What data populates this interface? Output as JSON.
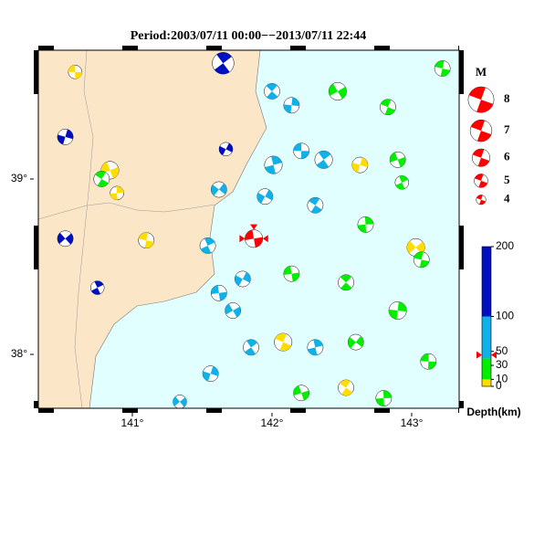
{
  "title": "Period:2003/07/11 00:00−−2013/07/11 22:44",
  "map": {
    "xlim": [
      140.327,
      143.34
    ],
    "ylim": [
      37.693,
      39.734
    ],
    "xticks": [
      {
        "value": 141,
        "label": "141°"
      },
      {
        "value": 142,
        "label": "142°"
      },
      {
        "value": 143,
        "label": "143°"
      }
    ],
    "yticks": [
      {
        "value": 38,
        "label": "38°"
      },
      {
        "value": 39,
        "label": "39°"
      }
    ],
    "land_color": "#fbe6c8",
    "sea_color": "#e2ffff",
    "selected_color": "#ff0000"
  },
  "magnitude_legend": {
    "title": "M",
    "values": [
      8,
      7,
      6,
      5,
      4
    ]
  },
  "depth_scale": {
    "label": "Depth(km)",
    "ylim": [
      0,
      200
    ],
    "ticks": [
      0,
      10,
      30,
      50,
      100,
      200
    ],
    "bands": [
      {
        "max": 10,
        "color": "#ffdd00"
      },
      {
        "max": 40,
        "color": "#00ee00"
      },
      {
        "max": 100,
        "color": "#10b0e8"
      },
      {
        "max": 200,
        "color": "#0010c0"
      }
    ],
    "marker": 45
  },
  "events": [
    {
      "lon": 140.59,
      "lat": 39.61,
      "mag": 5,
      "depth": 5
    },
    {
      "lon": 141.65,
      "lat": 39.66,
      "mag": 7,
      "depth": 120
    },
    {
      "lon": 140.52,
      "lat": 39.24,
      "mag": 5.5,
      "depth": 110
    },
    {
      "lon": 140.84,
      "lat": 39.05,
      "mag": 6,
      "depth": 8
    },
    {
      "lon": 140.78,
      "lat": 39.0,
      "mag": 5.5,
      "depth": 15
    },
    {
      "lon": 140.89,
      "lat": 38.92,
      "mag": 5,
      "depth": 9
    },
    {
      "lon": 140.52,
      "lat": 38.66,
      "mag": 5.5,
      "depth": 110
    },
    {
      "lon": 141.1,
      "lat": 38.65,
      "mag": 5.5,
      "depth": 8
    },
    {
      "lon": 140.75,
      "lat": 38.38,
      "mag": 5,
      "depth": 110
    },
    {
      "lon": 141.67,
      "lat": 39.17,
      "mag": 5,
      "depth": 105
    },
    {
      "lon": 141.87,
      "lat": 38.66,
      "mag": 6,
      "depth": 45,
      "selected": true
    },
    {
      "lon": 142.0,
      "lat": 39.5,
      "mag": 5.5,
      "depth": 60
    },
    {
      "lon": 142.14,
      "lat": 39.42,
      "mag": 5.5,
      "depth": 60
    },
    {
      "lon": 142.47,
      "lat": 39.5,
      "mag": 6,
      "depth": 20
    },
    {
      "lon": 142.83,
      "lat": 39.41,
      "mag": 5.5,
      "depth": 20
    },
    {
      "lon": 142.01,
      "lat": 39.08,
      "mag": 6,
      "depth": 60
    },
    {
      "lon": 141.62,
      "lat": 38.94,
      "mag": 5.5,
      "depth": 60
    },
    {
      "lon": 142.21,
      "lat": 39.16,
      "mag": 5.5,
      "depth": 60
    },
    {
      "lon": 142.37,
      "lat": 39.11,
      "mag": 6,
      "depth": 60
    },
    {
      "lon": 142.63,
      "lat": 39.08,
      "mag": 5.5,
      "depth": 8
    },
    {
      "lon": 142.9,
      "lat": 39.11,
      "mag": 5.5,
      "depth": 20
    },
    {
      "lon": 142.31,
      "lat": 38.85,
      "mag": 5.5,
      "depth": 60
    },
    {
      "lon": 142.67,
      "lat": 38.74,
      "mag": 5.5,
      "depth": 20
    },
    {
      "lon": 143.03,
      "lat": 38.61,
      "mag": 6,
      "depth": 8
    },
    {
      "lon": 143.07,
      "lat": 38.54,
      "mag": 5.5,
      "depth": 20
    },
    {
      "lon": 141.54,
      "lat": 38.62,
      "mag": 5.5,
      "depth": 60
    },
    {
      "lon": 141.79,
      "lat": 38.43,
      "mag": 5.5,
      "depth": 60
    },
    {
      "lon": 142.14,
      "lat": 38.46,
      "mag": 5.5,
      "depth": 20
    },
    {
      "lon": 142.53,
      "lat": 38.41,
      "mag": 5.5,
      "depth": 20
    },
    {
      "lon": 142.9,
      "lat": 38.25,
      "mag": 6,
      "depth": 20
    },
    {
      "lon": 141.72,
      "lat": 38.25,
      "mag": 5.5,
      "depth": 60
    },
    {
      "lon": 142.08,
      "lat": 38.07,
      "mag": 6,
      "depth": 8
    },
    {
      "lon": 142.31,
      "lat": 38.04,
      "mag": 5.5,
      "depth": 60
    },
    {
      "lon": 142.6,
      "lat": 38.07,
      "mag": 5.5,
      "depth": 20
    },
    {
      "lon": 143.12,
      "lat": 37.96,
      "mag": 5.5,
      "depth": 20
    },
    {
      "lon": 141.85,
      "lat": 38.04,
      "mag": 5.5,
      "depth": 60
    },
    {
      "lon": 141.56,
      "lat": 37.89,
      "mag": 5.5,
      "depth": 60
    },
    {
      "lon": 142.21,
      "lat": 37.78,
      "mag": 5.5,
      "depth": 20
    },
    {
      "lon": 142.53,
      "lat": 37.81,
      "mag": 5.5,
      "depth": 8
    },
    {
      "lon": 142.8,
      "lat": 37.75,
      "mag": 5.5,
      "depth": 20
    },
    {
      "lon": 141.34,
      "lat": 37.73,
      "mag": 5,
      "depth": 60
    },
    {
      "lon": 143.22,
      "lat": 39.63,
      "mag": 5.5,
      "depth": 20
    },
    {
      "lon": 142.93,
      "lat": 38.98,
      "mag": 5,
      "depth": 20
    },
    {
      "lon": 141.95,
      "lat": 38.9,
      "mag": 5.5,
      "depth": 60
    },
    {
      "lon": 141.62,
      "lat": 38.35,
      "mag": 5.5,
      "depth": 60
    }
  ]
}
